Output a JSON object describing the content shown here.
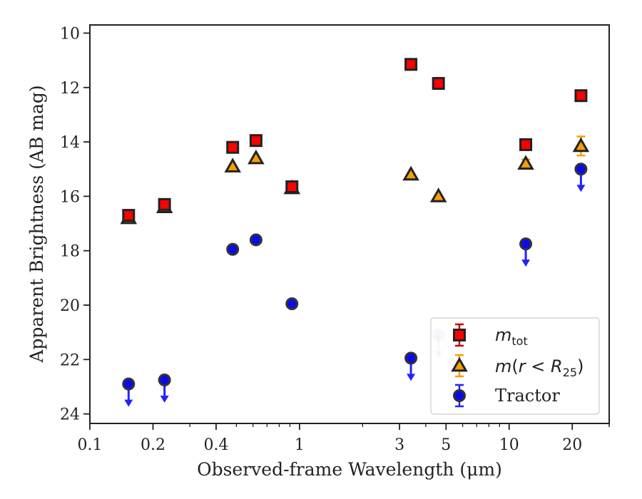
{
  "chart_data": {
    "type": "scatter",
    "xlabel": "Observed-frame Wavelength (μm)",
    "ylabel": "Apparent Brightness (AB mag)",
    "x_scale": "log",
    "xlim": [
      0.1,
      30
    ],
    "ylim": [
      24.35,
      9.7
    ],
    "y_inverted": true,
    "x_ticks": [
      {
        "value": 0.1,
        "label": "0.1"
      },
      {
        "value": 0.2,
        "label": "0.2"
      },
      {
        "value": 0.4,
        "label": "0.4"
      },
      {
        "value": 1,
        "label": "1"
      },
      {
        "value": 3,
        "label": "3"
      },
      {
        "value": 5,
        "label": "5"
      },
      {
        "value": 10,
        "label": "10"
      },
      {
        "value": 20,
        "label": "20"
      }
    ],
    "y_ticks": [
      {
        "value": 10,
        "label": "10"
      },
      {
        "value": 12,
        "label": "12"
      },
      {
        "value": 14,
        "label": "14"
      },
      {
        "value": 16,
        "label": "16"
      },
      {
        "value": 18,
        "label": "18"
      },
      {
        "value": 20,
        "label": "20"
      },
      {
        "value": 22,
        "label": "22"
      },
      {
        "value": 24,
        "label": "24"
      }
    ],
    "grid": false,
    "legend_position": "lower-right",
    "series": [
      {
        "name": "m_tot",
        "legend_label": "mtot",
        "marker": "square",
        "color": "#ff0000",
        "edge_color": "#222222",
        "errbar_color": "#cc0000",
        "points": [
          {
            "x": 0.153,
            "y": 16.7,
            "yerr": 0.15
          },
          {
            "x": 0.227,
            "y": 16.3,
            "yerr": 0.15
          },
          {
            "x": 0.48,
            "y": 14.2
          },
          {
            "x": 0.62,
            "y": 13.95
          },
          {
            "x": 0.92,
            "y": 15.65,
            "yerr": 0.15
          },
          {
            "x": 3.4,
            "y": 11.15
          },
          {
            "x": 4.6,
            "y": 11.85
          },
          {
            "x": 12.0,
            "y": 14.1
          },
          {
            "x": 22.0,
            "y": 12.3
          }
        ]
      },
      {
        "name": "m(r < R25)",
        "legend_label": "m(r < R25)",
        "marker": "triangle",
        "color": "#f5a000",
        "edge_color": "#222222",
        "errbar_color": "#f5a000",
        "points": [
          {
            "x": 0.153,
            "y": 16.8
          },
          {
            "x": 0.227,
            "y": 16.4
          },
          {
            "x": 0.48,
            "y": 14.9
          },
          {
            "x": 0.62,
            "y": 14.6
          },
          {
            "x": 0.92,
            "y": 15.7
          },
          {
            "x": 3.4,
            "y": 15.2
          },
          {
            "x": 4.6,
            "y": 16.0
          },
          {
            "x": 12.0,
            "y": 14.8,
            "yerr": 0.15
          },
          {
            "x": 22.0,
            "y": 14.15,
            "yerr": 0.35
          }
        ]
      },
      {
        "name": "Tractor",
        "legend_label": "Tractor",
        "marker": "circle",
        "color": "#0a0aee",
        "edge_color": "#333333",
        "errbar_color": "#2222ff",
        "points": [
          {
            "x": 0.153,
            "y": 22.9,
            "upper_limit": true
          },
          {
            "x": 0.227,
            "y": 22.75,
            "upper_limit": true
          },
          {
            "x": 0.48,
            "y": 17.95
          },
          {
            "x": 0.62,
            "y": 17.6
          },
          {
            "x": 0.92,
            "y": 19.95
          },
          {
            "x": 3.4,
            "y": 21.95,
            "upper_limit": true
          },
          {
            "x": 4.6,
            "y": 21.1,
            "upper_limit": true,
            "faded": true
          },
          {
            "x": 12.0,
            "y": 17.75,
            "upper_limit": true
          },
          {
            "x": 22.0,
            "y": 15.0,
            "upper_limit": true
          }
        ]
      }
    ]
  }
}
